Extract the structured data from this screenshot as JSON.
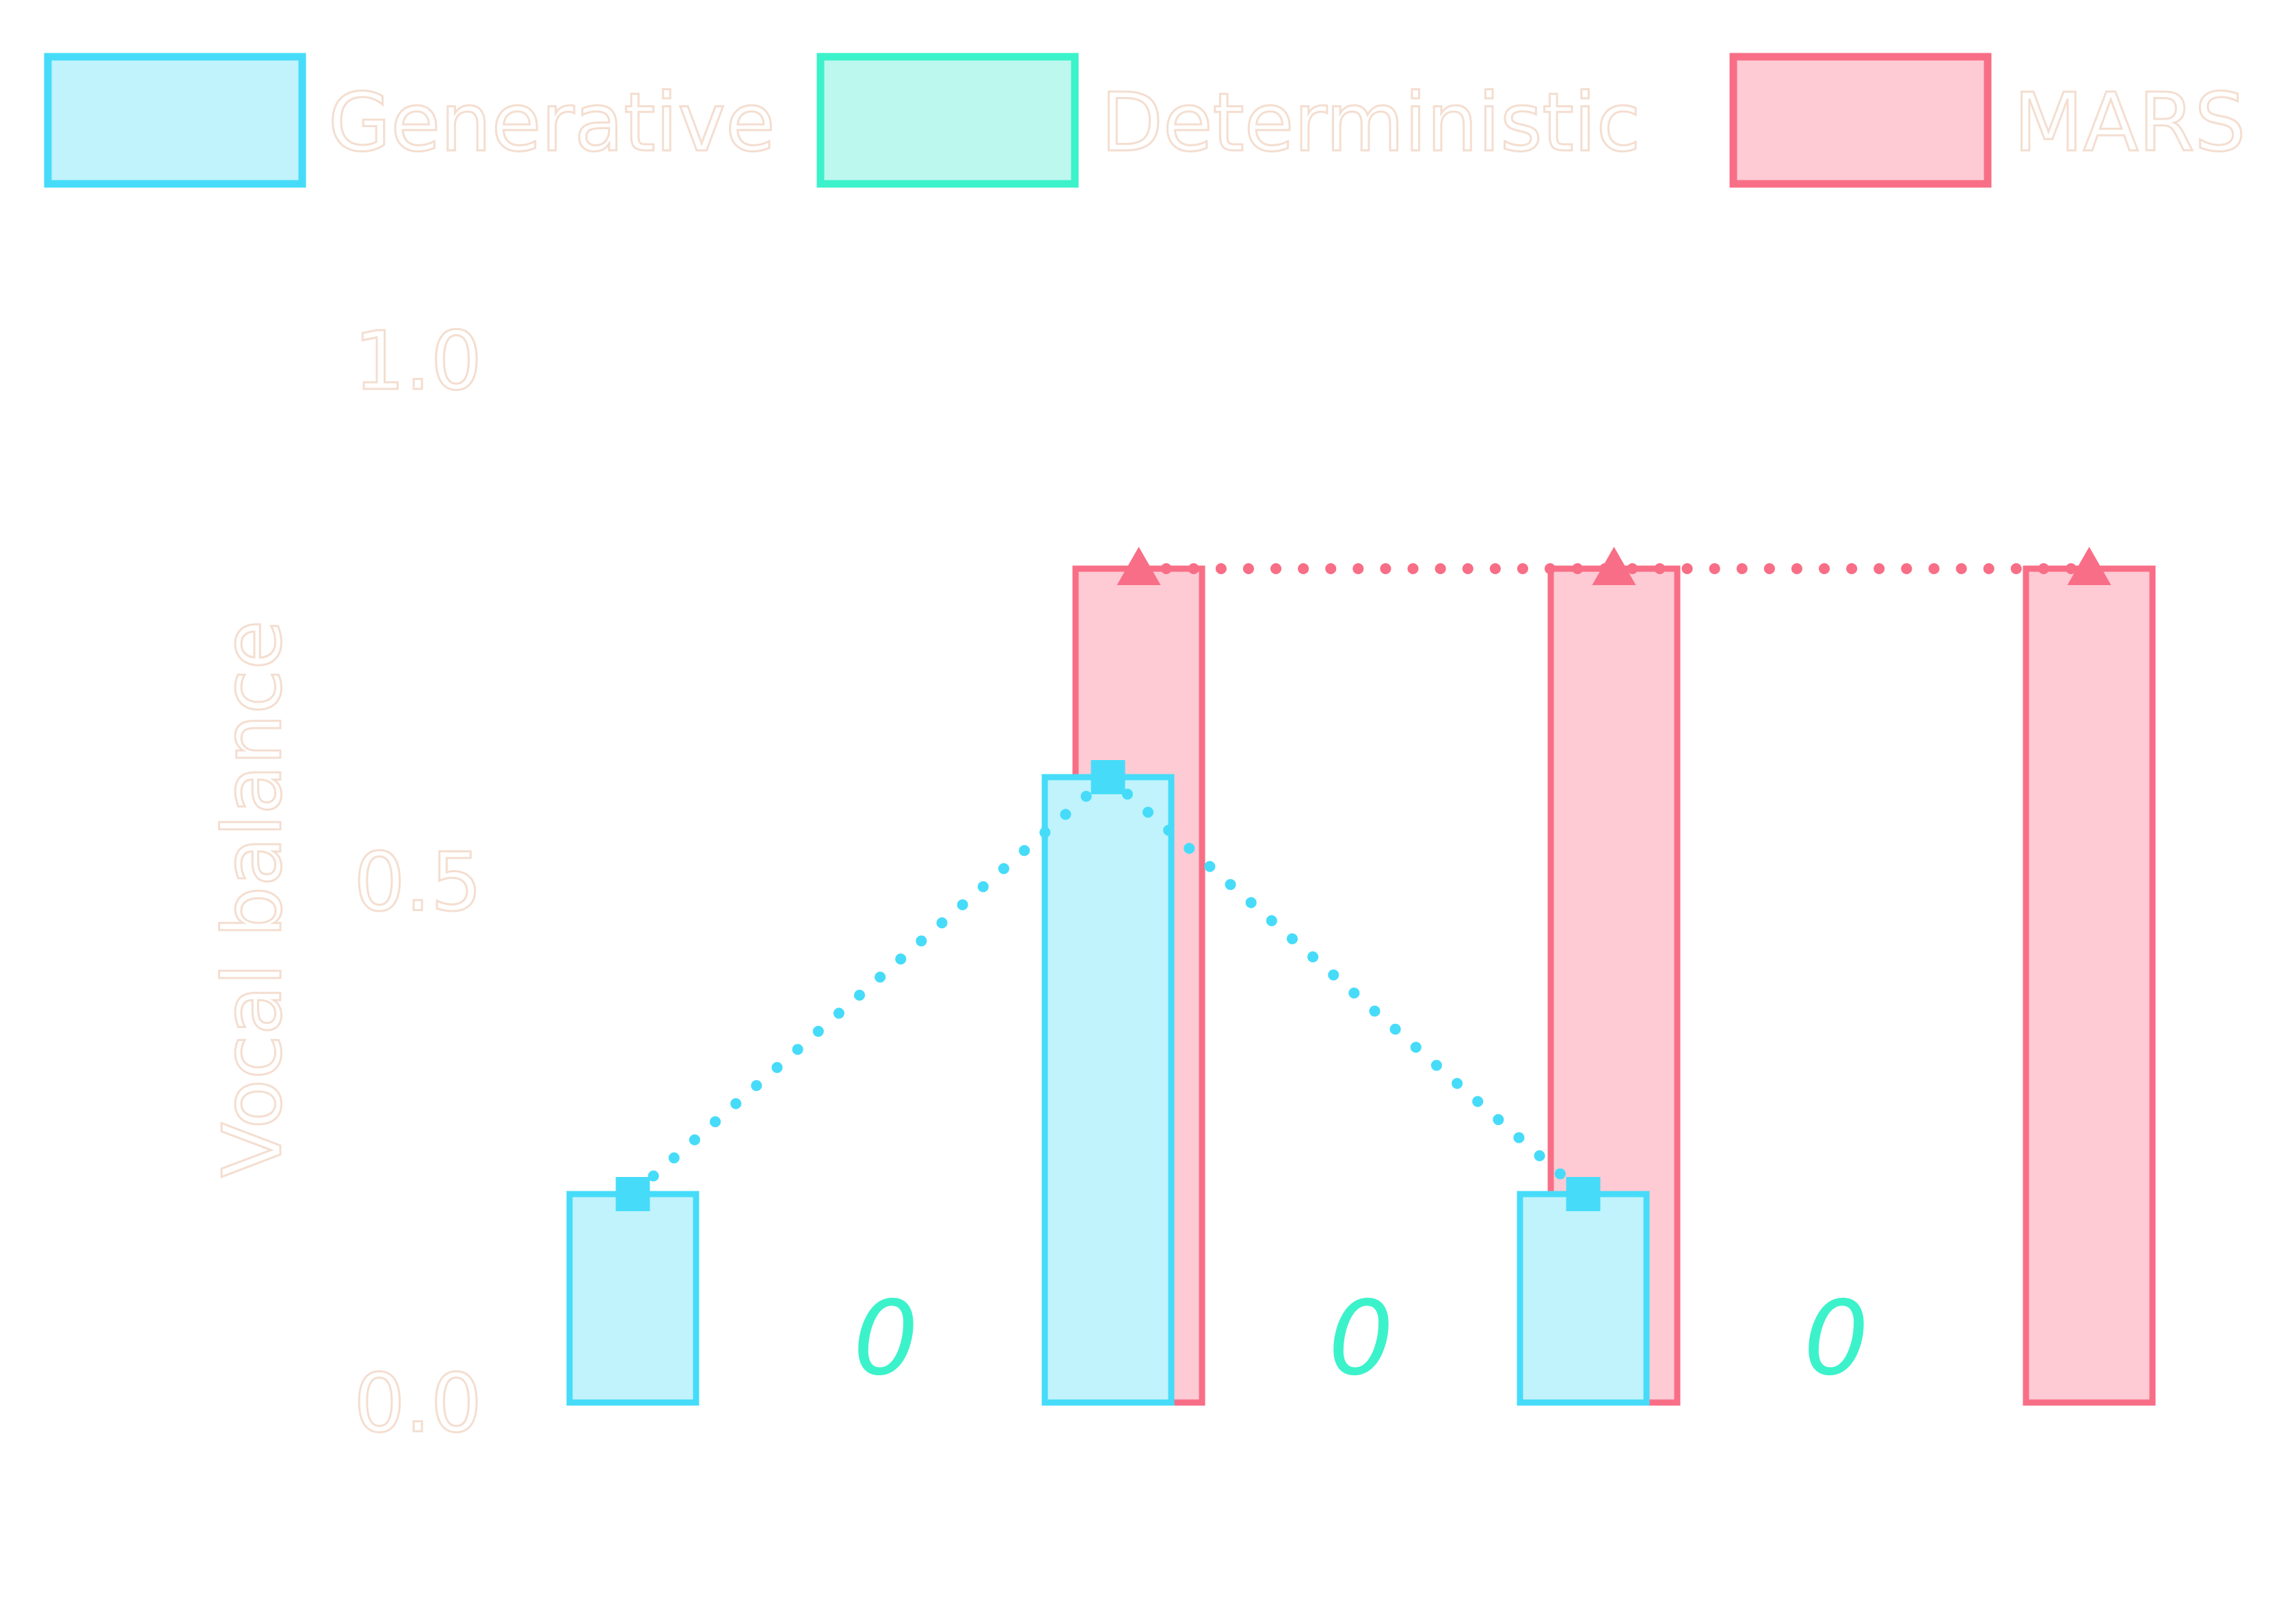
{
  "chart_data": {
    "type": "bar",
    "ylabel": "Vocal balance",
    "ylim": [
      0,
      1.0
    ],
    "yticks": [
      "0.0",
      "0.5",
      "1.0"
    ],
    "categories": [
      "",
      "",
      ""
    ],
    "series": [
      {
        "name": "Generative",
        "values": [
          0.2,
          0.6,
          0.2
        ],
        "fill": "#c0f3fc",
        "stroke": "#46dcf9",
        "marker": "square",
        "line_style": "dotted"
      },
      {
        "name": "Deterministic",
        "values": [
          0,
          0,
          0
        ],
        "fill": "#bdf8ee",
        "stroke": "#3cf2ca",
        "value_labels": [
          "0",
          "0",
          "0"
        ]
      },
      {
        "name": "MARS",
        "values": [
          0.8,
          0.8,
          0.8
        ],
        "fill": "#fecad4",
        "stroke": "#f86e86",
        "marker": "triangle",
        "line_style": "dotted"
      }
    ],
    "grid": false,
    "legend_position": "top"
  }
}
